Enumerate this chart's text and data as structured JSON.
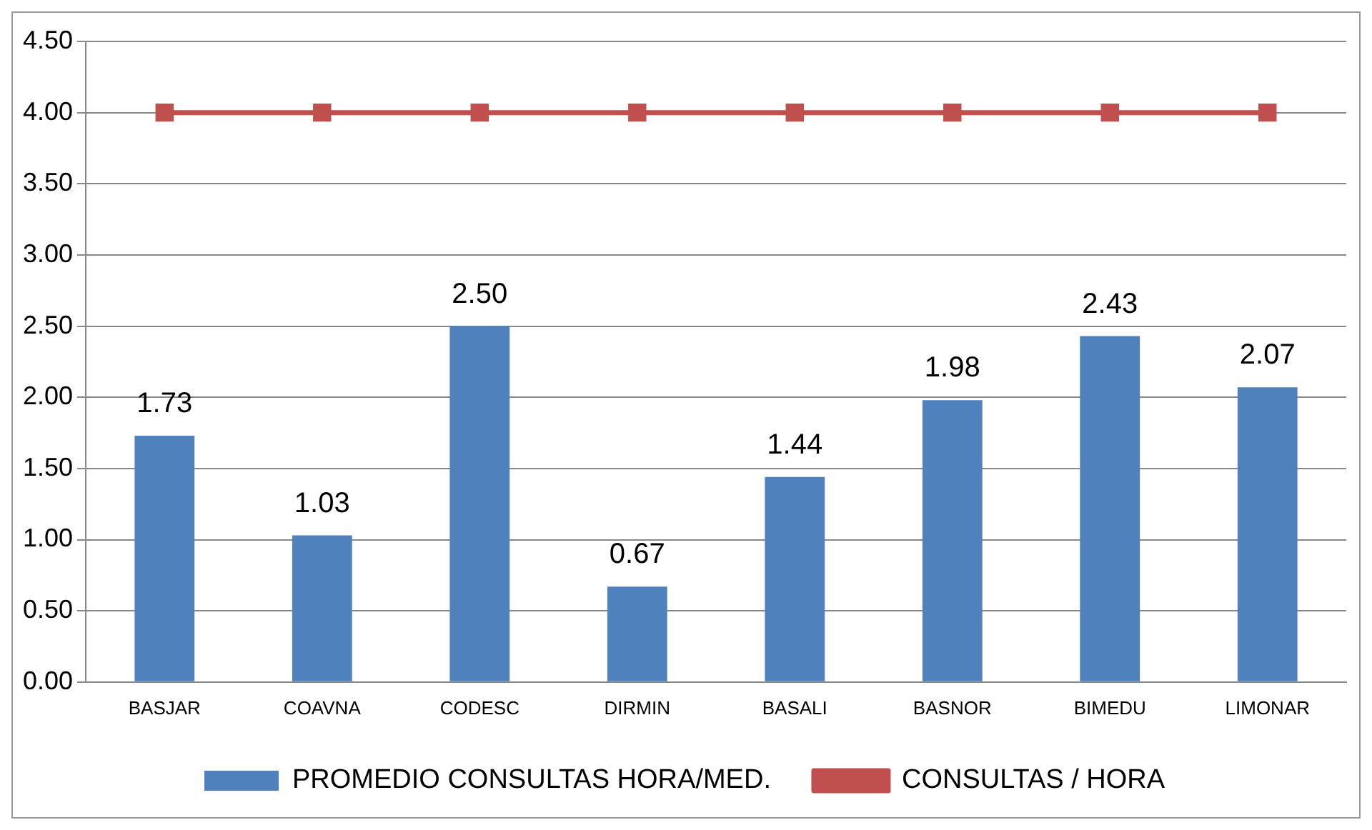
{
  "chart_data": {
    "type": "bar",
    "categories": [
      "BASJAR",
      "COAVNA",
      "CODESC",
      "DIRMIN",
      "BASALI",
      "BASNOR",
      "BIMEDU",
      "LIMONAR"
    ],
    "series": [
      {
        "name": "PROMEDIO CONSULTAS HORA/MED.",
        "color": "#4f81bd",
        "values": [
          1.73,
          1.03,
          2.5,
          0.67,
          1.44,
          1.98,
          2.43,
          2.07
        ],
        "value_labels": [
          "1.73",
          "1.03",
          "2.50",
          "0.67",
          "1.44",
          "1.98",
          "2.43",
          "2.07"
        ]
      },
      {
        "name": "CONSULTAS / HORA",
        "type": "line",
        "color": "#c0504d",
        "values": [
          4,
          4,
          4,
          4,
          4,
          4,
          4,
          4
        ],
        "marker": "square",
        "line_style": "solid"
      }
    ],
    "ylim": [
      0,
      4.5
    ],
    "yticks": [
      {
        "value": 0,
        "label": "0.00"
      },
      {
        "value": 0.5,
        "label": "0.50"
      },
      {
        "value": 1,
        "label": "1.00"
      },
      {
        "value": 1.5,
        "label": "1.50"
      },
      {
        "value": 2,
        "label": "2.00"
      },
      {
        "value": 2.5,
        "label": "2.50"
      },
      {
        "value": 3,
        "label": "3.00"
      },
      {
        "value": 3.5,
        "label": "3.50"
      },
      {
        "value": 4,
        "label": "4.00"
      },
      {
        "value": 4.5,
        "label": "4.50"
      }
    ],
    "grid": "y",
    "legend": "bottom"
  }
}
